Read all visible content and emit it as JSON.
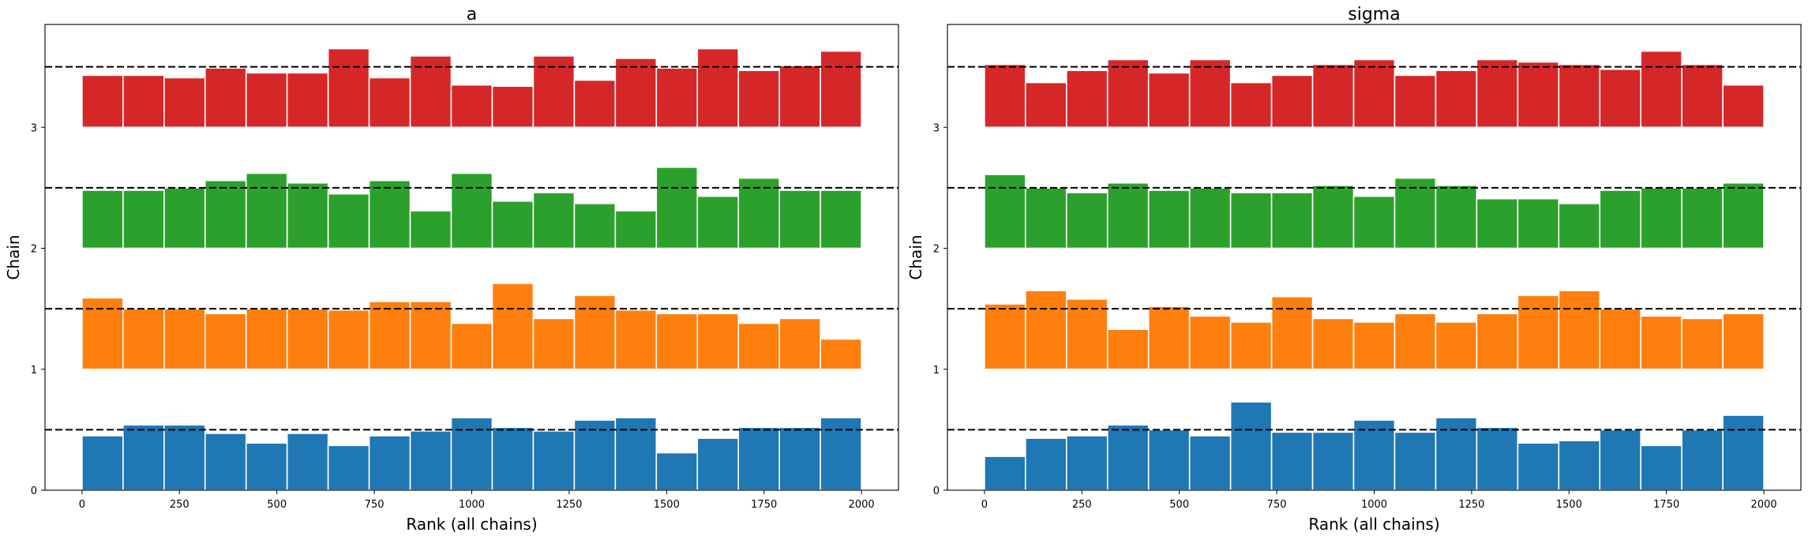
{
  "figure_width": 2290,
  "figure_height": 679,
  "chart_data": [
    {
      "type": "bar",
      "subtype": "rank-histogram",
      "title": "a",
      "xlabel": "Rank (all chains)",
      "ylabel": "Chain",
      "xlim": [
        -95,
        2095
      ],
      "ylim": [
        0,
        3.85
      ],
      "xticks": [
        0,
        250,
        500,
        750,
        1000,
        1250,
        1500,
        1750,
        2000
      ],
      "yticks": [
        0,
        1,
        2,
        3
      ],
      "bin_edges": [
        0,
        105.26,
        210.53,
        315.79,
        421.05,
        526.32,
        631.58,
        736.84,
        842.11,
        947.37,
        1052.63,
        1157.89,
        1263.16,
        1368.42,
        1473.68,
        1578.95,
        1684.21,
        1789.47,
        1894.74,
        2000
      ],
      "reference_lines": [
        0.5,
        1.5,
        2.5,
        3.5
      ],
      "series": [
        {
          "name": "0",
          "color": "#1f77b4",
          "offset": 0,
          "values": [
            0.45,
            0.54,
            0.54,
            0.47,
            0.39,
            0.47,
            0.37,
            0.45,
            0.49,
            0.6,
            0.52,
            0.49,
            0.58,
            0.6,
            0.31,
            0.43,
            0.52,
            0.52,
            0.6
          ]
        },
        {
          "name": "1",
          "color": "#ff7f0e",
          "offset": 1,
          "values": [
            0.59,
            0.5,
            0.5,
            0.46,
            0.5,
            0.5,
            0.49,
            0.56,
            0.56,
            0.38,
            0.71,
            0.42,
            0.61,
            0.49,
            0.46,
            0.46,
            0.38,
            0.42,
            0.25
          ]
        },
        {
          "name": "2",
          "color": "#2ca02c",
          "offset": 2,
          "values": [
            0.48,
            0.48,
            0.5,
            0.56,
            0.62,
            0.54,
            0.45,
            0.56,
            0.31,
            0.62,
            0.39,
            0.46,
            0.37,
            0.31,
            0.67,
            0.43,
            0.58,
            0.48,
            0.48
          ]
        },
        {
          "name": "3",
          "color": "#d62728",
          "offset": 3,
          "values": [
            0.43,
            0.43,
            0.41,
            0.49,
            0.45,
            0.45,
            0.65,
            0.41,
            0.59,
            0.35,
            0.34,
            0.59,
            0.39,
            0.57,
            0.49,
            0.65,
            0.47,
            0.51,
            0.63
          ]
        }
      ]
    },
    {
      "type": "bar",
      "subtype": "rank-histogram",
      "title": "sigma",
      "xlabel": "Rank (all chains)",
      "ylabel": "Chain",
      "xlim": [
        -95,
        2095
      ],
      "ylim": [
        0,
        3.85
      ],
      "xticks": [
        0,
        250,
        500,
        750,
        1000,
        1250,
        1500,
        1750,
        2000
      ],
      "yticks": [
        0,
        1,
        2,
        3
      ],
      "bin_edges": [
        0,
        105.26,
        210.53,
        315.79,
        421.05,
        526.32,
        631.58,
        736.84,
        842.11,
        947.37,
        1052.63,
        1157.89,
        1263.16,
        1368.42,
        1473.68,
        1578.95,
        1684.21,
        1789.47,
        1894.74,
        2000
      ],
      "reference_lines": [
        0.5,
        1.5,
        2.5,
        3.5
      ],
      "series": [
        {
          "name": "0",
          "color": "#1f77b4",
          "offset": 0,
          "values": [
            0.28,
            0.43,
            0.45,
            0.54,
            0.5,
            0.45,
            0.73,
            0.48,
            0.48,
            0.58,
            0.48,
            0.6,
            0.52,
            0.39,
            0.41,
            0.5,
            0.37,
            0.5,
            0.62
          ]
        },
        {
          "name": "1",
          "color": "#ff7f0e",
          "offset": 1,
          "values": [
            0.54,
            0.65,
            0.58,
            0.33,
            0.52,
            0.44,
            0.39,
            0.6,
            0.42,
            0.39,
            0.46,
            0.39,
            0.46,
            0.61,
            0.65,
            0.5,
            0.44,
            0.42,
            0.46
          ]
        },
        {
          "name": "2",
          "color": "#2ca02c",
          "offset": 2,
          "values": [
            0.61,
            0.5,
            0.46,
            0.54,
            0.48,
            0.5,
            0.46,
            0.46,
            0.52,
            0.43,
            0.58,
            0.52,
            0.41,
            0.41,
            0.37,
            0.48,
            0.5,
            0.5,
            0.54
          ]
        },
        {
          "name": "3",
          "color": "#d62728",
          "offset": 3,
          "values": [
            0.52,
            0.37,
            0.47,
            0.56,
            0.45,
            0.56,
            0.37,
            0.43,
            0.52,
            0.56,
            0.43,
            0.47,
            0.56,
            0.54,
            0.52,
            0.48,
            0.63,
            0.52,
            0.35
          ]
        }
      ]
    }
  ]
}
